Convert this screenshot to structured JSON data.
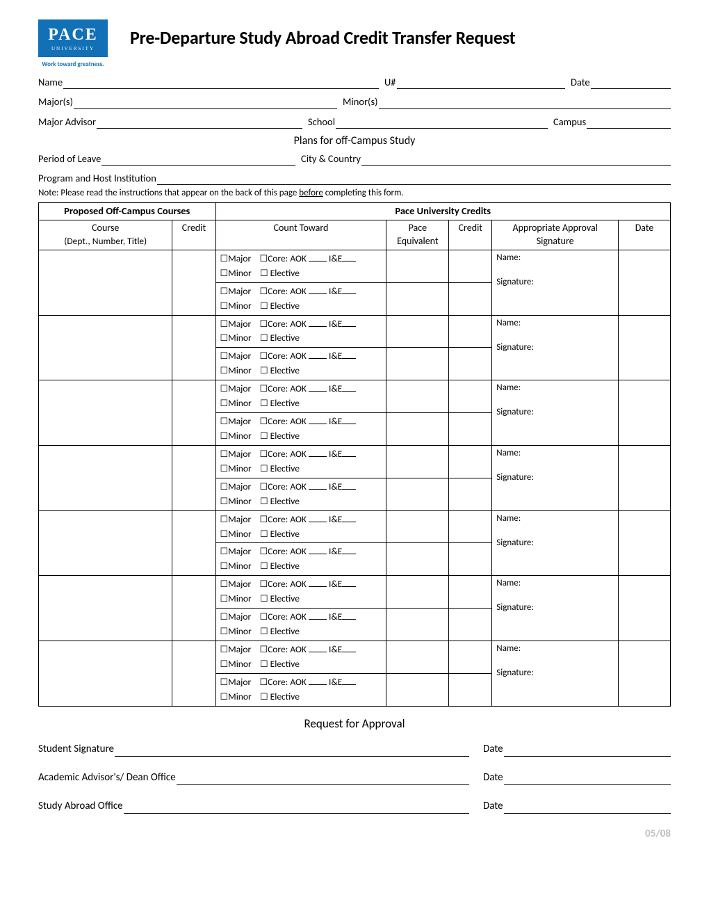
{
  "logo": {
    "main": "PACE",
    "sub": "UNIVERSITY",
    "tagline": "Work toward greatness."
  },
  "title": "Pre-Departure Study Abroad Credit Transfer Request",
  "fields_row1": {
    "name": "Name",
    "unum": "U#",
    "date": "Date"
  },
  "fields_row2": {
    "majors": "Major(s)",
    "minors": "Minor(s)"
  },
  "fields_row3": {
    "advisor": "Major Advisor",
    "school": "School",
    "campus": "Campus"
  },
  "plans_heading": "Plans for off-Campus Study",
  "fields_row4": {
    "period": "Period of Leave",
    "city": "City & Country"
  },
  "fields_row5": {
    "program": "Program and Host Institution"
  },
  "note_prefix": "Note: Please read the instructions that appear on the back of this page ",
  "note_underlined": "before",
  "note_suffix": " completing this form.",
  "table": {
    "hdr_left": "Proposed Off-Campus Courses",
    "hdr_right": "Pace University Credits",
    "col_course": "Course",
    "col_course_sub": "(Dept., Number, Title)",
    "col_credit": "Credit",
    "col_count": "Count Toward",
    "col_equiv_top": "Pace",
    "col_equiv_bot": "Equivalent",
    "col_credit2": "Credit",
    "col_approval_top": "Appropriate Approval",
    "col_approval_bot": "Signature",
    "col_date": "Date",
    "count_html": {
      "major": "Major",
      "core": "Core:",
      "aok": "AOK",
      "ie": "I&E",
      "minor": "Minor",
      "elective": "Elective"
    },
    "approval": {
      "name": "Name:",
      "signature": "Signature:"
    },
    "group_count": 7
  },
  "request_heading": "Request for Approval",
  "sig1": {
    "label": "Student Signature",
    "date": "Date"
  },
  "sig2": {
    "label": "Academic Advisor's/ Dean Office",
    "date": "Date"
  },
  "sig3": {
    "label": "Study Abroad Office",
    "date": "Date"
  },
  "footer_date": "05/08",
  "colors": {
    "logo_bg": "#1270b7",
    "footer": "#bfbfbf"
  }
}
